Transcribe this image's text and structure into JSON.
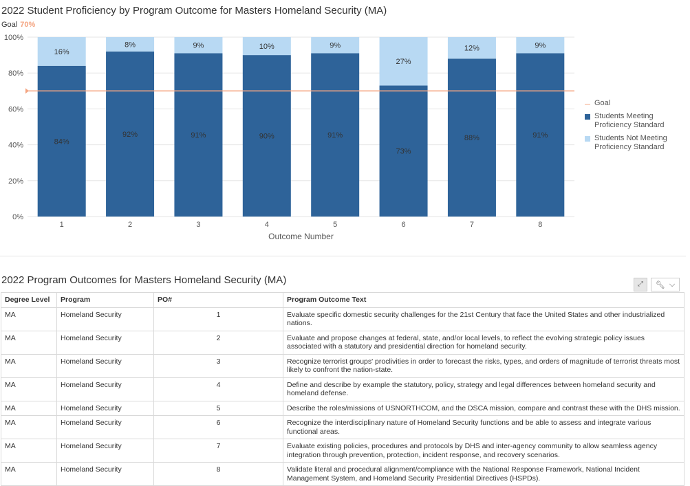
{
  "chart_data": {
    "type": "bar",
    "stacked": true,
    "title": "2022 Student Proficiency by Program Outcome for Masters Homeland Security (MA)",
    "goal_label": "Goal",
    "goal_value_text": "70%",
    "goal": 70,
    "categories": [
      "1",
      "2",
      "3",
      "4",
      "5",
      "6",
      "7",
      "8"
    ],
    "xlabel": "Outcome Number",
    "ylabel": "",
    "ylim": [
      0,
      100
    ],
    "yticks": [
      "0%",
      "20%",
      "40%",
      "60%",
      "80%",
      "100%"
    ],
    "series": [
      {
        "name": "Students Meeting Proficiency Standard",
        "color": "#2e6399",
        "values": [
          84,
          92,
          91,
          90,
          91,
          73,
          88,
          91
        ],
        "labels": [
          "84%",
          "92%",
          "91%",
          "90%",
          "91%",
          "73%",
          "88%",
          "91%"
        ]
      },
      {
        "name": "Students Not Meeting Proficiency Standard",
        "color": "#b8d9f3",
        "values": [
          16,
          8,
          9,
          10,
          9,
          27,
          12,
          9
        ],
        "labels": [
          "16%",
          "8%",
          "9%",
          "10%",
          "9%",
          "27%",
          "12%",
          "9%"
        ]
      }
    ],
    "goal_color": "#f4a582",
    "grid": true,
    "legend_position": "right",
    "legend": [
      "Goal",
      "Students Meeting Proficiency Standard",
      "Students Not Meeting Proficiency Standard"
    ]
  },
  "table": {
    "title": "2022 Program Outcomes for Masters Homeland Security (MA)",
    "expand_icon": "expand-icon",
    "menu_icon": "wrench-icon",
    "headers": [
      "Degree Level",
      "Program",
      "PO#",
      "Program Outcome Text"
    ],
    "rows": [
      [
        "MA",
        "Homeland Security",
        "1",
        "Evaluate specific domestic security challenges for the 21st Century that face the United States and other industrialized nations."
      ],
      [
        "MA",
        "Homeland Security",
        "2",
        "Evaluate and propose changes at federal, state, and/or local levels, to reflect the evolving strategic policy issues associated with a statutory and presidential direction for homeland security."
      ],
      [
        "MA",
        "Homeland Security",
        "3",
        "Recognize terrorist groups' proclivities in order to forecast the risks, types, and orders of magnitude of terrorist threats most likely to confront the nation-state."
      ],
      [
        "MA",
        "Homeland Security",
        "4",
        "Define and describe by example the statutory, policy, strategy and legal differences between homeland security and homeland defense."
      ],
      [
        "MA",
        "Homeland Security",
        "5",
        "Describe the roles/missions of USNORTHCOM, and the DSCA mission, compare and contrast these with the DHS mission."
      ],
      [
        "MA",
        "Homeland Security",
        "6",
        "Recognize the interdisciplinary nature of Homeland Security functions and be able to assess and integrate various functional areas."
      ],
      [
        "MA",
        "Homeland Security",
        "7",
        "Evaluate existing policies, procedures and protocols by DHS and inter-agency community to allow seamless agency integration through prevention, protection, incident response, and recovery scenarios."
      ],
      [
        "MA",
        "Homeland Security",
        "8",
        "Validate literal and procedural alignment/compliance with the National Response Framework, National Incident Management System, and Homeland Security Presidential Directives (HSPDs)."
      ]
    ]
  }
}
